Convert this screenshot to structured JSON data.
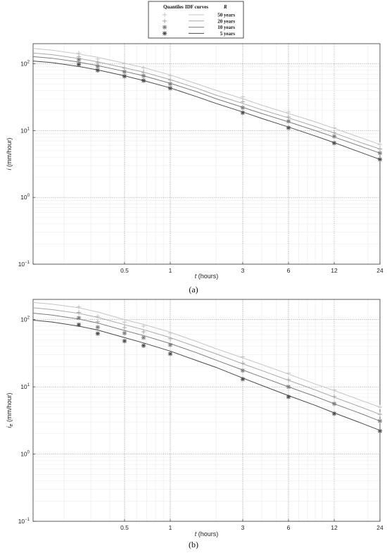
{
  "legend": {
    "col_quantiles": "Quantiles",
    "col_idf": "IDF curves",
    "col_r": "R",
    "rows": [
      "50 years",
      "20 years",
      "10 years",
      "5 years"
    ]
  },
  "chart_data": [
    {
      "type": "line",
      "panel_label": "(a)",
      "xlabel_var": "t",
      "xlabel_unit": "(hours)",
      "ylabel_var": "i",
      "ylabel_sub": "",
      "ylabel_unit": "(mm/hour)",
      "x_scale": "log",
      "y_scale": "log",
      "xlim": [
        0.125,
        24
      ],
      "ylim": [
        0.1,
        200
      ],
      "x_ticks": [
        0.5,
        1,
        3,
        6,
        12,
        24
      ],
      "x_tick_labels": [
        "0.5",
        "1",
        "3",
        "6",
        "12",
        "24"
      ],
      "y_ticks": [
        0.1,
        1,
        10,
        100
      ],
      "grid": true,
      "legend_position": "top-center",
      "series": [
        {
          "name": "50 years",
          "color": "#c4c4c4",
          "marker": "+",
          "curve_x": [
            0.125,
            0.167,
            0.25,
            0.333,
            0.5,
            0.667,
            1,
            1.5,
            2,
            3,
            4,
            6,
            9,
            12,
            18,
            24
          ],
          "curve_y": [
            170,
            160,
            140,
            125,
            102,
            88,
            68,
            50,
            40,
            30,
            24,
            18,
            13.5,
            10.8,
            7.8,
            6.2
          ],
          "points_x": [
            0.25,
            0.333,
            0.5,
            0.667,
            1,
            3,
            6,
            12,
            24
          ],
          "points_y": [
            145,
            118,
            100,
            87,
            66,
            32,
            19,
            11,
            6.2
          ]
        },
        {
          "name": "20 years",
          "color": "#a8a8a8",
          "marker": "+",
          "curve_x": [
            0.125,
            0.167,
            0.25,
            0.333,
            0.5,
            0.667,
            1,
            1.5,
            2,
            3,
            4,
            6,
            9,
            12,
            18,
            24
          ],
          "curve_y": [
            145,
            137,
            120,
            107,
            87,
            75,
            58,
            43,
            34,
            25.5,
            20.5,
            15.5,
            11.5,
            9.2,
            6.6,
            5.3
          ],
          "points_x": [
            0.25,
            0.333,
            0.5,
            0.667,
            1,
            3,
            6,
            12,
            24
          ],
          "points_y": [
            128,
            104,
            86,
            74,
            57,
            27,
            16,
            9.3,
            5.3
          ]
        },
        {
          "name": "10 years",
          "color": "#7c7c7c",
          "marker": "*",
          "curve_x": [
            0.125,
            0.167,
            0.25,
            0.333,
            0.5,
            0.667,
            1,
            1.5,
            2,
            3,
            4,
            6,
            9,
            12,
            18,
            24
          ],
          "curve_y": [
            128,
            121,
            106,
            94,
            77,
            66,
            51,
            38,
            30,
            22.3,
            18,
            13.5,
            10,
            8,
            5.8,
            4.6
          ],
          "points_x": [
            0.25,
            0.333,
            0.5,
            0.667,
            1,
            3,
            6,
            12,
            24
          ],
          "points_y": [
            115,
            92,
            76,
            66,
            50,
            22,
            13.8,
            8.2,
            4.6
          ]
        },
        {
          "name": "5 years",
          "color": "#4a4a4a",
          "marker": "*",
          "curve_x": [
            0.125,
            0.167,
            0.25,
            0.333,
            0.5,
            0.667,
            1,
            1.5,
            2,
            3,
            4,
            6,
            9,
            12,
            18,
            24
          ],
          "curve_y": [
            110,
            104,
            91,
            81,
            66,
            56,
            43.5,
            32,
            25.5,
            19,
            15.2,
            11.3,
            8.3,
            6.6,
            4.7,
            3.7
          ],
          "points_x": [
            0.25,
            0.333,
            0.5,
            0.667,
            1,
            3,
            6,
            12,
            24
          ],
          "points_y": [
            98,
            80,
            65,
            56,
            43,
            18.5,
            11,
            6.5,
            3.7
          ]
        }
      ]
    },
    {
      "type": "line",
      "panel_label": "(b)",
      "xlabel_var": "t",
      "xlabel_unit": "(hours)",
      "ylabel_var": "i",
      "ylabel_sub": "e",
      "ylabel_unit": "(mm/hour)",
      "x_scale": "log",
      "y_scale": "log",
      "xlim": [
        0.125,
        24
      ],
      "ylim": [
        0.1,
        200
      ],
      "x_ticks": [
        0.5,
        1,
        3,
        6,
        12,
        24
      ],
      "x_tick_labels": [
        "0.5",
        "1",
        "3",
        "6",
        "12",
        "24"
      ],
      "y_ticks": [
        0.1,
        1,
        10,
        100
      ],
      "grid": true,
      "series": [
        {
          "name": "50 years",
          "color": "#c4c4c4",
          "marker": "+",
          "curve_x": [
            0.125,
            0.167,
            0.25,
            0.333,
            0.5,
            0.667,
            1,
            1.5,
            2,
            3,
            4,
            6,
            9,
            12,
            18,
            24
          ],
          "curve_y": [
            180,
            170,
            150,
            130,
            100,
            85,
            65,
            47,
            37,
            27,
            21.5,
            15.5,
            11,
            8.8,
            6.3,
            5
          ],
          "points_x": [
            0.25,
            0.333,
            0.5,
            0.667,
            1,
            3,
            6,
            12,
            24
          ],
          "points_y": [
            155,
            112,
            92,
            80,
            63,
            28,
            16,
            9,
            5
          ]
        },
        {
          "name": "20 years",
          "color": "#a8a8a8",
          "marker": "+",
          "curve_x": [
            0.125,
            0.167,
            0.25,
            0.333,
            0.5,
            0.667,
            1,
            1.5,
            2,
            3,
            4,
            6,
            9,
            12,
            18,
            24
          ],
          "curve_y": [
            150,
            141,
            124,
            108,
            84,
            71,
            54,
            39,
            31,
            22,
            17.5,
            12.5,
            9,
            7,
            5,
            3.9
          ],
          "points_x": [
            0.25,
            0.333,
            0.5,
            0.667,
            1,
            3,
            6,
            12,
            24
          ],
          "points_y": [
            128,
            93,
            76,
            66,
            52,
            22.5,
            12.8,
            7.2,
            3.9
          ]
        },
        {
          "name": "10 years",
          "color": "#7c7c7c",
          "marker": "*",
          "curve_x": [
            0.125,
            0.167,
            0.25,
            0.333,
            0.5,
            0.667,
            1,
            1.5,
            2,
            3,
            4,
            6,
            9,
            12,
            18,
            24
          ],
          "curve_y": [
            125,
            117,
            102,
            89,
            69,
            58,
            44,
            32,
            25,
            17.8,
            14,
            10,
            7.2,
            5.6,
            4,
            3.1
          ],
          "points_x": [
            0.25,
            0.333,
            0.5,
            0.667,
            1,
            3,
            6,
            12,
            24
          ],
          "points_y": [
            106,
            77,
            63,
            54,
            42,
            17.5,
            10,
            5.6,
            3.1
          ]
        },
        {
          "name": "5 years",
          "color": "#4a4a4a",
          "marker": "*",
          "curve_x": [
            0.125,
            0.167,
            0.25,
            0.333,
            0.5,
            0.667,
            1,
            1.5,
            2,
            3,
            4,
            6,
            9,
            12,
            18,
            24
          ],
          "curve_y": [
            98,
            92,
            80,
            70,
            54,
            45,
            34,
            24.5,
            19.5,
            13.5,
            10.5,
            7.4,
            5.3,
            4.1,
            2.9,
            2.25
          ],
          "points_x": [
            0.25,
            0.333,
            0.5,
            0.667,
            1,
            3,
            6,
            12,
            24
          ],
          "points_y": [
            84,
            62,
            48,
            41,
            31,
            13,
            7.1,
            4,
            2.2
          ]
        }
      ]
    }
  ]
}
